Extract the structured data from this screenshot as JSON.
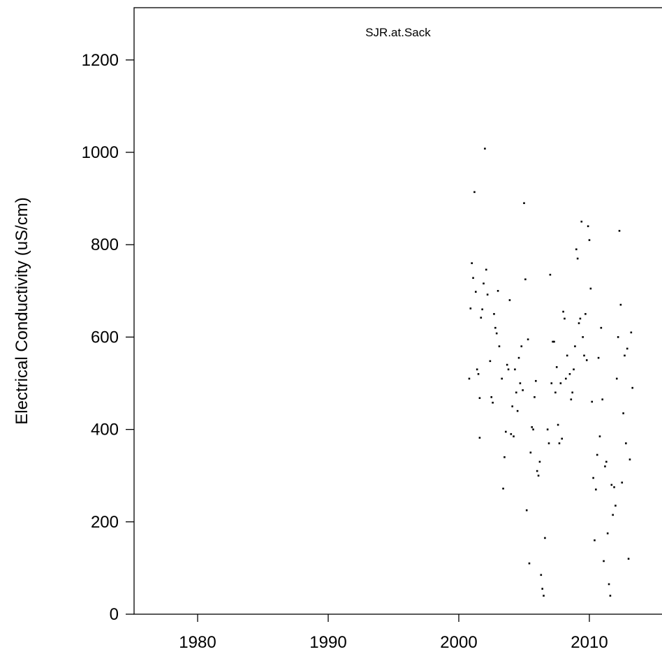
{
  "chart_data": {
    "type": "scatter",
    "title": "SJR.at.Sack",
    "xlabel": "",
    "ylabel": "Electrical Conductivity (uS/cm)",
    "xlim": [
      1975.5,
      2015
    ],
    "ylim": [
      0,
      1300
    ],
    "x_ticks": [
      1980,
      1990,
      2000,
      2010
    ],
    "y_ticks": [
      0,
      200,
      400,
      600,
      800,
      1000,
      1200
    ],
    "grid": false,
    "legend": "none",
    "point_color": "#000000",
    "points": [
      [
        2000.8,
        510
      ],
      [
        2000.9,
        662
      ],
      [
        2001.0,
        760
      ],
      [
        2001.1,
        728
      ],
      [
        2001.2,
        914
      ],
      [
        2001.3,
        698
      ],
      [
        2001.4,
        530
      ],
      [
        2001.5,
        520
      ],
      [
        2001.6,
        468
      ],
      [
        2001.6,
        382
      ],
      [
        2001.7,
        642
      ],
      [
        2001.8,
        660
      ],
      [
        2001.9,
        716
      ],
      [
        2002.0,
        1008
      ],
      [
        2002.1,
        746
      ],
      [
        2002.2,
        692
      ],
      [
        2002.4,
        548
      ],
      [
        2002.5,
        470
      ],
      [
        2002.6,
        458
      ],
      [
        2002.7,
        650
      ],
      [
        2002.8,
        620
      ],
      [
        2002.9,
        608
      ],
      [
        2003.0,
        700
      ],
      [
        2003.1,
        580
      ],
      [
        2003.3,
        510
      ],
      [
        2003.4,
        272
      ],
      [
        2003.5,
        340
      ],
      [
        2003.6,
        395
      ],
      [
        2003.7,
        540
      ],
      [
        2003.8,
        530
      ],
      [
        2003.9,
        680
      ],
      [
        2004.0,
        390
      ],
      [
        2004.1,
        450
      ],
      [
        2004.2,
        385
      ],
      [
        2004.3,
        530
      ],
      [
        2004.4,
        480
      ],
      [
        2004.5,
        440
      ],
      [
        2004.6,
        555
      ],
      [
        2004.7,
        500
      ],
      [
        2004.8,
        580
      ],
      [
        2004.9,
        485
      ],
      [
        2005.0,
        890
      ],
      [
        2005.1,
        725
      ],
      [
        2005.2,
        225
      ],
      [
        2005.3,
        595
      ],
      [
        2005.4,
        110
      ],
      [
        2005.5,
        350
      ],
      [
        2005.6,
        405
      ],
      [
        2005.7,
        400
      ],
      [
        2005.8,
        470
      ],
      [
        2005.9,
        505
      ],
      [
        2006.0,
        310
      ],
      [
        2006.1,
        300
      ],
      [
        2006.2,
        330
      ],
      [
        2006.3,
        85
      ],
      [
        2006.4,
        55
      ],
      [
        2006.5,
        40
      ],
      [
        2006.6,
        165
      ],
      [
        2006.8,
        400
      ],
      [
        2006.9,
        370
      ],
      [
        2007.0,
        735
      ],
      [
        2007.1,
        500
      ],
      [
        2007.2,
        590
      ],
      [
        2007.3,
        590
      ],
      [
        2007.4,
        480
      ],
      [
        2007.5,
        535
      ],
      [
        2007.6,
        410
      ],
      [
        2007.7,
        370
      ],
      [
        2007.8,
        500
      ],
      [
        2007.9,
        380
      ],
      [
        2008.0,
        655
      ],
      [
        2008.1,
        640
      ],
      [
        2008.2,
        510
      ],
      [
        2008.3,
        560
      ],
      [
        2008.5,
        520
      ],
      [
        2008.6,
        465
      ],
      [
        2008.7,
        480
      ],
      [
        2008.8,
        530
      ],
      [
        2008.9,
        580
      ],
      [
        2009.0,
        790
      ],
      [
        2009.1,
        770
      ],
      [
        2009.2,
        630
      ],
      [
        2009.3,
        640
      ],
      [
        2009.4,
        850
      ],
      [
        2009.5,
        600
      ],
      [
        2009.6,
        560
      ],
      [
        2009.7,
        650
      ],
      [
        2009.8,
        550
      ],
      [
        2009.9,
        840
      ],
      [
        2010.0,
        810
      ],
      [
        2010.1,
        705
      ],
      [
        2010.2,
        460
      ],
      [
        2010.3,
        295
      ],
      [
        2010.4,
        160
      ],
      [
        2010.5,
        270
      ],
      [
        2010.6,
        345
      ],
      [
        2010.7,
        555
      ],
      [
        2010.8,
        385
      ],
      [
        2010.9,
        620
      ],
      [
        2011.0,
        465
      ],
      [
        2011.1,
        115
      ],
      [
        2011.2,
        320
      ],
      [
        2011.3,
        330
      ],
      [
        2011.4,
        175
      ],
      [
        2011.5,
        65
      ],
      [
        2011.6,
        40
      ],
      [
        2011.7,
        280
      ],
      [
        2011.8,
        215
      ],
      [
        2011.9,
        275
      ],
      [
        2012.0,
        235
      ],
      [
        2012.1,
        510
      ],
      [
        2012.2,
        600
      ],
      [
        2012.3,
        830
      ],
      [
        2012.4,
        670
      ],
      [
        2012.5,
        285
      ],
      [
        2012.6,
        435
      ],
      [
        2012.7,
        560
      ],
      [
        2012.8,
        370
      ],
      [
        2012.9,
        575
      ],
      [
        2013.0,
        120
      ],
      [
        2013.1,
        335
      ],
      [
        2013.2,
        610
      ],
      [
        2013.3,
        490
      ]
    ]
  }
}
